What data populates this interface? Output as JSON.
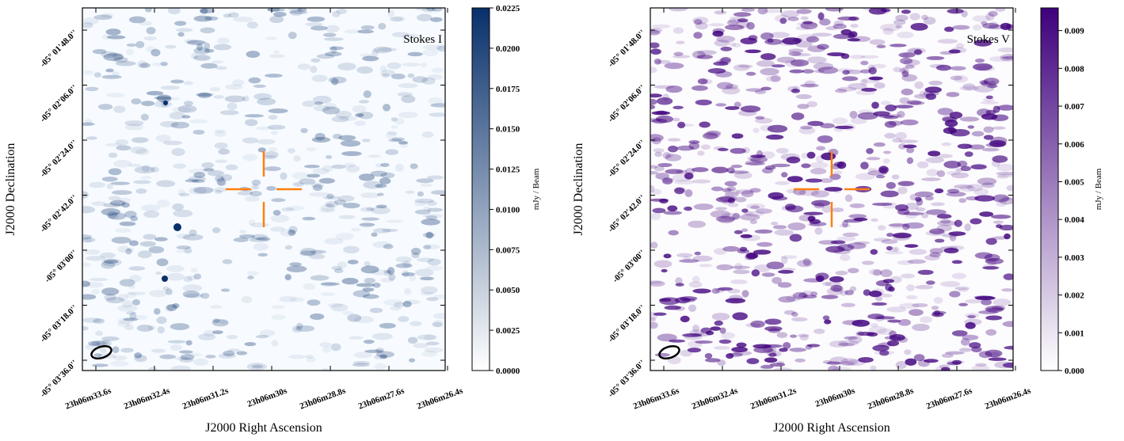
{
  "chart_data": [
    {
      "type": "image",
      "annotation": "Stokes I",
      "xlabel": "J2000 Right Ascension",
      "ylabel": "J2000 Declination",
      "xtick_labels": [
        "23h06m33.6s",
        "23h06m32.4s",
        "23h06m31.2s",
        "23h06m30s",
        "23h06m28.8s",
        "23h06m27.6s",
        "23h06m26.4s"
      ],
      "ytick_labels": [
        "-05° 01'48.0''",
        "-05° 02'06.0''",
        "-05° 02'24.0''",
        "-05° 02'42.0''",
        "-05° 03'00''",
        "-05° 03'18.0''",
        "-05° 03'36.0''"
      ],
      "colorbar": {
        "label": "mJy / Beam",
        "color": "#08306b",
        "lim": [
          0,
          0.0225
        ],
        "ticks": [
          {
            "value": 0,
            "label": "0.0000"
          },
          {
            "value": 0.0025,
            "label": "0.0025"
          },
          {
            "value": 0.005,
            "label": "0.0050"
          },
          {
            "value": 0.0075,
            "label": "0.0075"
          },
          {
            "value": 0.01,
            "label": "0.0100"
          },
          {
            "value": 0.0125,
            "label": "0.0125"
          },
          {
            "value": 0.015,
            "label": "0.0150"
          },
          {
            "value": 0.0175,
            "label": "0.0175"
          },
          {
            "value": 0.02,
            "label": "0.0200"
          },
          {
            "value": 0.0225,
            "label": "0.0225"
          }
        ]
      }
    },
    {
      "type": "image",
      "annotation": "Stokes V",
      "xlabel": "J2000 Right Ascension",
      "ylabel": "J2000 Declination",
      "xtick_labels": [
        "23h06m33.6s",
        "23h06m32.4s",
        "23h06m31.2s",
        "23h06m30s",
        "23h06m28.8s",
        "23h06m27.6s",
        "23h06m26.4s"
      ],
      "ytick_labels": [
        "-05° 01'48.0''",
        "-05° 02'06.0''",
        "-05° 02'24.0''",
        "-05° 02'42.0''",
        "-05° 03'00''",
        "-05° 03'18.0''",
        "-05° 03'36.0''"
      ],
      "colorbar": {
        "label": "mJy / Beam",
        "color": "#3f007d",
        "lim": [
          0,
          0.0096
        ],
        "ticks": [
          {
            "value": 0,
            "label": "0.000"
          },
          {
            "value": 0.001,
            "label": "0.001"
          },
          {
            "value": 0.002,
            "label": "0.002"
          },
          {
            "value": 0.003,
            "label": "0.003"
          },
          {
            "value": 0.004,
            "label": "0.004"
          },
          {
            "value": 0.005,
            "label": "0.005"
          },
          {
            "value": 0.006,
            "label": "0.006"
          },
          {
            "value": 0.007,
            "label": "0.007"
          },
          {
            "value": 0.008,
            "label": "0.008"
          },
          {
            "value": 0.009,
            "label": "0.009"
          }
        ]
      }
    }
  ]
}
